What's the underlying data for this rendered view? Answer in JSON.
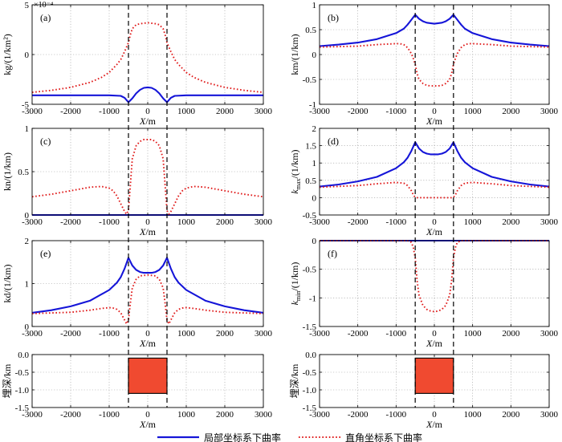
{
  "chart_data": [
    {
      "id": "a",
      "type": "line",
      "panel_label": "(a)",
      "ylabel": "kg/(1/km²)",
      "xlabel": "X/m",
      "exponent_label": "×10⁻⁴",
      "xlim": [
        -3000,
        3000
      ],
      "ylim": [
        -5,
        5
      ],
      "xticks": [
        -3000,
        -2000,
        -1000,
        0,
        1000,
        2000,
        3000
      ],
      "yticks": [
        -5,
        0,
        5
      ],
      "series": [
        {
          "style": "solid",
          "color": "#1515d8",
          "x": [
            -3000,
            -2000,
            -1000,
            -700,
            -600,
            -500,
            -400,
            -300,
            -200,
            -100,
            0,
            100,
            200,
            300,
            400,
            500,
            600,
            700,
            1000,
            2000,
            3000
          ],
          "y": [
            -4.1,
            -4.1,
            -4.1,
            -4.15,
            -4.35,
            -4.8,
            -4.4,
            -3.9,
            -3.55,
            -3.35,
            -3.3,
            -3.35,
            -3.55,
            -3.9,
            -4.4,
            -4.8,
            -4.35,
            -4.15,
            -4.1,
            -4.1,
            -4.1
          ]
        },
        {
          "style": "dotted",
          "color": "#e01a1a",
          "x": [
            -3000,
            -2500,
            -2000,
            -1500,
            -1200,
            -1000,
            -800,
            -700,
            -600,
            -500,
            -450,
            -400,
            -300,
            -200,
            0,
            200,
            300,
            400,
            450,
            500,
            600,
            700,
            800,
            1000,
            1200,
            1500,
            2000,
            2500,
            3000
          ],
          "y": [
            -3.8,
            -3.6,
            -3.3,
            -2.8,
            -2.3,
            -1.8,
            -1.0,
            -0.5,
            0.3,
            1.2,
            2.0,
            2.6,
            3.0,
            3.1,
            3.2,
            3.1,
            3.0,
            2.6,
            2.0,
            1.2,
            0.3,
            -0.5,
            -1.0,
            -1.8,
            -2.3,
            -2.8,
            -3.3,
            -3.6,
            -3.8
          ]
        }
      ]
    },
    {
      "id": "b",
      "type": "line",
      "panel_label": "(b)",
      "ylabel": "km/(1/km)",
      "xlabel": "X/m",
      "xlim": [
        -3000,
        3000
      ],
      "ylim": [
        -1,
        1
      ],
      "xticks": [
        -3000,
        -2000,
        -1000,
        0,
        1000,
        2000,
        3000
      ],
      "yticks": [
        -1,
        -0.5,
        0,
        0.5,
        1
      ],
      "series": [
        {
          "style": "solid",
          "color": "#1515d8",
          "x": [
            -3000,
            -2500,
            -2000,
            -1500,
            -1000,
            -800,
            -700,
            -600,
            -500,
            -400,
            -300,
            -200,
            -100,
            0,
            100,
            200,
            300,
            400,
            500,
            600,
            700,
            800,
            1000,
            1500,
            2000,
            2500,
            3000
          ],
          "y": [
            0.17,
            0.2,
            0.24,
            0.31,
            0.43,
            0.52,
            0.6,
            0.7,
            0.8,
            0.72,
            0.67,
            0.64,
            0.63,
            0.62,
            0.63,
            0.64,
            0.67,
            0.72,
            0.8,
            0.7,
            0.6,
            0.52,
            0.43,
            0.31,
            0.24,
            0.2,
            0.17
          ]
        },
        {
          "style": "dotted",
          "color": "#e01a1a",
          "x": [
            -3000,
            -2000,
            -1500,
            -1000,
            -900,
            -800,
            -700,
            -600,
            -550,
            -500,
            -450,
            -400,
            -300,
            -200,
            -100,
            0,
            100,
            200,
            300,
            400,
            450,
            500,
            550,
            600,
            700,
            800,
            900,
            1000,
            1500,
            2000,
            3000
          ],
          "y": [
            0.15,
            0.17,
            0.2,
            0.22,
            0.22,
            0.2,
            0.14,
            0.02,
            -0.08,
            -0.2,
            -0.38,
            -0.5,
            -0.58,
            -0.62,
            -0.63,
            -0.63,
            -0.63,
            -0.62,
            -0.58,
            -0.5,
            -0.38,
            -0.2,
            -0.08,
            0.02,
            0.14,
            0.2,
            0.22,
            0.22,
            0.2,
            0.17,
            0.15
          ]
        }
      ]
    },
    {
      "id": "c",
      "type": "line",
      "panel_label": "(c)",
      "ylabel": "kn/(1/km)",
      "xlabel": "X/m",
      "xlim": [
        -3000,
        3000
      ],
      "ylim": [
        0,
        1
      ],
      "xticks": [
        -3000,
        -2000,
        -1000,
        0,
        1000,
        2000,
        3000
      ],
      "yticks": [
        0,
        0.5,
        1
      ],
      "series": [
        {
          "style": "solid",
          "color": "#1515d8",
          "x": [
            -3000,
            3000
          ],
          "y": [
            0,
            0
          ]
        },
        {
          "style": "dotted",
          "color": "#e01a1a",
          "x": [
            -3000,
            -2500,
            -2000,
            -1500,
            -1200,
            -1000,
            -900,
            -800,
            -700,
            -600,
            -550,
            -500,
            -450,
            -400,
            -300,
            -200,
            -100,
            0,
            100,
            200,
            300,
            400,
            450,
            500,
            550,
            600,
            700,
            800,
            900,
            1000,
            1200,
            1500,
            2000,
            2500,
            3000
          ],
          "y": [
            0.21,
            0.24,
            0.28,
            0.32,
            0.33,
            0.31,
            0.28,
            0.22,
            0.13,
            0.04,
            0.01,
            0.05,
            0.35,
            0.65,
            0.8,
            0.85,
            0.87,
            0.87,
            0.87,
            0.85,
            0.8,
            0.65,
            0.35,
            0.05,
            0.01,
            0.04,
            0.13,
            0.22,
            0.28,
            0.31,
            0.33,
            0.32,
            0.28,
            0.24,
            0.21
          ]
        }
      ]
    },
    {
      "id": "d",
      "type": "line",
      "panel_label": "(d)",
      "ylabel": "k_max/(1/km)",
      "xlabel": "X/m",
      "xlim": [
        -3000,
        3000
      ],
      "ylim": [
        -0.5,
        2
      ],
      "xticks": [
        -3000,
        -2000,
        -1000,
        0,
        1000,
        2000,
        3000
      ],
      "yticks": [
        -0.5,
        0,
        0.5,
        1,
        1.5,
        2
      ],
      "series": [
        {
          "style": "solid",
          "color": "#1515d8",
          "x": [
            -3000,
            -2500,
            -2000,
            -1500,
            -1000,
            -800,
            -700,
            -600,
            -500,
            -400,
            -300,
            -200,
            -100,
            0,
            100,
            200,
            300,
            400,
            500,
            600,
            700,
            800,
            1000,
            1500,
            2000,
            2500,
            3000
          ],
          "y": [
            0.32,
            0.38,
            0.47,
            0.6,
            0.85,
            1.02,
            1.15,
            1.35,
            1.6,
            1.42,
            1.32,
            1.27,
            1.25,
            1.25,
            1.25,
            1.27,
            1.32,
            1.42,
            1.6,
            1.35,
            1.15,
            1.02,
            0.85,
            0.6,
            0.47,
            0.38,
            0.32
          ]
        },
        {
          "style": "dotted",
          "color": "#e01a1a",
          "x": [
            -3000,
            -2000,
            -1500,
            -1000,
            -800,
            -700,
            -600,
            -550,
            -500,
            -450,
            -400,
            -300,
            0,
            300,
            400,
            450,
            500,
            550,
            600,
            700,
            800,
            1000,
            1500,
            2000,
            3000
          ],
          "y": [
            0.3,
            0.35,
            0.4,
            0.44,
            0.42,
            0.35,
            0.2,
            0.08,
            0.01,
            0,
            0,
            0,
            0,
            0,
            0,
            0,
            0.01,
            0.08,
            0.2,
            0.35,
            0.42,
            0.44,
            0.4,
            0.35,
            0.3
          ]
        }
      ]
    },
    {
      "id": "e",
      "type": "line",
      "panel_label": "(e)",
      "ylabel": "kd/(1/km)",
      "xlabel": "X/m",
      "xlim": [
        -3000,
        3000
      ],
      "ylim": [
        0,
        2
      ],
      "xticks": [
        -3000,
        -2000,
        -1000,
        0,
        1000,
        2000,
        3000
      ],
      "yticks": [
        0,
        1,
        2
      ],
      "series": [
        {
          "style": "solid",
          "color": "#1515d8",
          "x": [
            -3000,
            -2500,
            -2000,
            -1500,
            -1000,
            -800,
            -700,
            -600,
            -500,
            -400,
            -300,
            -200,
            -100,
            0,
            100,
            200,
            300,
            400,
            500,
            600,
            700,
            800,
            1000,
            1500,
            2000,
            2500,
            3000
          ],
          "y": [
            0.32,
            0.38,
            0.47,
            0.6,
            0.85,
            1.02,
            1.15,
            1.35,
            1.6,
            1.42,
            1.32,
            1.27,
            1.25,
            1.25,
            1.25,
            1.27,
            1.32,
            1.42,
            1.6,
            1.35,
            1.15,
            1.02,
            0.85,
            0.6,
            0.47,
            0.38,
            0.32
          ]
        },
        {
          "style": "dotted",
          "color": "#e01a1a",
          "x": [
            -3000,
            -2000,
            -1500,
            -1200,
            -1000,
            -900,
            -800,
            -700,
            -600,
            -550,
            -500,
            -450,
            -400,
            -300,
            -200,
            0,
            200,
            300,
            400,
            450,
            500,
            550,
            600,
            700,
            800,
            900,
            1000,
            1200,
            1500,
            2000,
            3000
          ],
          "y": [
            0.3,
            0.33,
            0.38,
            0.42,
            0.44,
            0.43,
            0.4,
            0.32,
            0.15,
            0.06,
            0.15,
            0.55,
            0.9,
            1.1,
            1.18,
            1.2,
            1.18,
            1.1,
            0.9,
            0.55,
            0.15,
            0.06,
            0.15,
            0.32,
            0.4,
            0.43,
            0.44,
            0.42,
            0.38,
            0.33,
            0.3
          ]
        }
      ]
    },
    {
      "id": "f",
      "type": "line",
      "panel_label": "(f)",
      "ylabel": "k_min/(1/km)",
      "xlabel": "X/m",
      "xlim": [
        -3000,
        3000
      ],
      "ylim": [
        -1.5,
        0
      ],
      "xticks": [
        -3000,
        -2000,
        -1000,
        0,
        1000,
        2000,
        3000
      ],
      "yticks": [
        -1.5,
        -1,
        -0.5,
        0
      ],
      "series": [
        {
          "style": "solid",
          "color": "#1515d8",
          "x": [
            -3000,
            3000
          ],
          "y": [
            0,
            0
          ]
        },
        {
          "style": "dotted",
          "color": "#e01a1a",
          "x": [
            -3000,
            -700,
            -600,
            -550,
            -500,
            -450,
            -400,
            -300,
            -200,
            -100,
            0,
            100,
            200,
            300,
            400,
            450,
            500,
            550,
            600,
            700,
            3000
          ],
          "y": [
            0,
            0,
            -0.03,
            -0.12,
            -0.3,
            -0.7,
            -0.95,
            -1.13,
            -1.2,
            -1.23,
            -1.24,
            -1.23,
            -1.2,
            -1.13,
            -0.95,
            -0.7,
            -0.3,
            -0.12,
            -0.03,
            0,
            0
          ]
        }
      ]
    },
    {
      "id": "g",
      "type": "area",
      "ylabel": "埋深/km",
      "xlabel": "X/m",
      "xlim": [
        -3000,
        3000
      ],
      "ylim": [
        -1.5,
        0
      ],
      "xticks": [
        -3000,
        -2000,
        -1000,
        0,
        1000,
        2000,
        3000
      ],
      "yticks": [
        0.0,
        -0.5,
        -1.0,
        -1.5
      ],
      "ytick_labels": [
        "0.0",
        "-0.5",
        "-1.0",
        "-1.5"
      ],
      "block": {
        "x0": -500,
        "x1": 500,
        "y_top": -0.1,
        "y_bottom": -1.1,
        "color": "#f04a30"
      }
    },
    {
      "id": "h",
      "type": "area",
      "ylabel": "埋深/km",
      "xlabel": "X/m",
      "xlim": [
        -3000,
        3000
      ],
      "ylim": [
        -1.5,
        0
      ],
      "xticks": [
        -3000,
        -2000,
        -1000,
        0,
        1000,
        2000,
        3000
      ],
      "yticks": [
        0.0,
        -0.5,
        -1.0,
        -1.5
      ],
      "ytick_labels": [
        "0.0",
        "-0.5",
        "-1.0",
        "-1.5"
      ],
      "block": {
        "x0": -500,
        "x1": 500,
        "y_top": -0.1,
        "y_bottom": -1.1,
        "color": "#f04a30"
      }
    }
  ],
  "boundaries_x": [
    -500,
    500
  ],
  "legend": {
    "placement": "bottom",
    "items": [
      {
        "label": "局部坐标系下曲率",
        "style": "solid",
        "color": "#1515d8"
      },
      {
        "label": "直角坐标系下曲率",
        "style": "dotted",
        "color": "#e01a1a"
      }
    ]
  }
}
